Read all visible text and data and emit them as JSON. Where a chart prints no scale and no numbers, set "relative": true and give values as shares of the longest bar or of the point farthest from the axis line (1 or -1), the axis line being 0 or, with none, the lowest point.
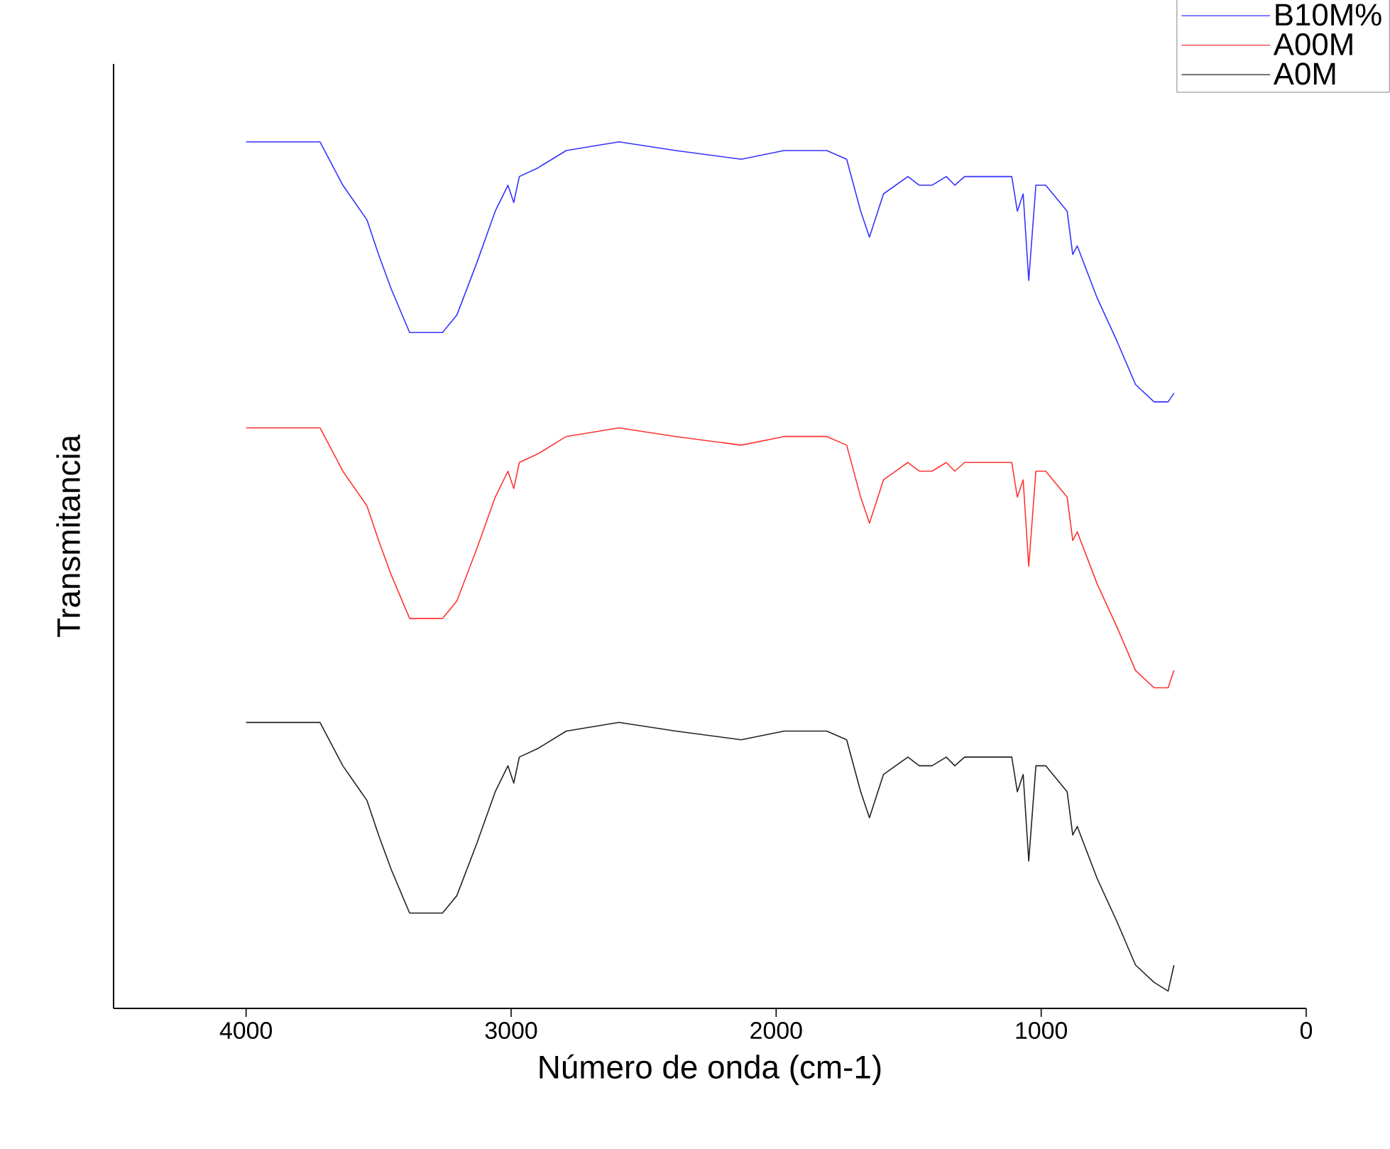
{
  "chart_data": {
    "type": "line",
    "xlabel": "Número de onda (cm-1)",
    "ylabel": "Transmitancia",
    "relative": true,
    "legend": "top right",
    "grid": false,
    "line_style": "solid",
    "xlim": [
      4500,
      0
    ],
    "xticks": [
      4000,
      3000,
      2000,
      1000,
      0
    ],
    "x": [
      4000,
      3800,
      3721,
      3635,
      3544,
      3500,
      3452,
      3383,
      3313,
      3259,
      3205,
      3130,
      3060,
      3012,
      2990,
      2969,
      2899,
      2792,
      2593,
      2379,
      2132,
      1970,
      1809,
      1734,
      1681,
      1648,
      1595,
      1503,
      1460,
      1412,
      1358,
      1326,
      1289,
      1219,
      1111,
      1090,
      1068,
      1047,
      1020,
      983,
      902,
      881,
      864,
      789,
      714,
      644,
      574,
      521,
      499
    ],
    "series": [
      {
        "name": "B10M%",
        "color": "#3333ff",
        "values": [
          1.0,
          1.0,
          1.0,
          0.95,
          0.91,
          0.87,
          0.83,
          0.78,
          0.78,
          0.78,
          0.8,
          0.86,
          0.92,
          0.95,
          0.93,
          0.96,
          0.97,
          0.99,
          1.0,
          0.99,
          0.98,
          0.99,
          0.99,
          0.98,
          0.92,
          0.89,
          0.94,
          0.96,
          0.95,
          0.95,
          0.96,
          0.95,
          0.96,
          0.96,
          0.96,
          0.92,
          0.94,
          0.84,
          0.95,
          0.95,
          0.92,
          0.87,
          0.88,
          0.82,
          0.77,
          0.72,
          0.7,
          0.7,
          0.71
        ]
      },
      {
        "name": "A00M",
        "color": "#ff3333",
        "values": [
          0.67,
          0.67,
          0.67,
          0.62,
          0.58,
          0.54,
          0.5,
          0.45,
          0.45,
          0.45,
          0.47,
          0.53,
          0.59,
          0.62,
          0.6,
          0.63,
          0.64,
          0.66,
          0.67,
          0.66,
          0.65,
          0.66,
          0.66,
          0.65,
          0.59,
          0.56,
          0.61,
          0.63,
          0.62,
          0.62,
          0.63,
          0.62,
          0.63,
          0.63,
          0.63,
          0.59,
          0.61,
          0.51,
          0.62,
          0.62,
          0.59,
          0.54,
          0.55,
          0.49,
          0.44,
          0.39,
          0.37,
          0.37,
          0.39
        ]
      },
      {
        "name": "A0M",
        "color": "#222222",
        "values": [
          0.33,
          0.33,
          0.33,
          0.28,
          0.24,
          0.2,
          0.16,
          0.11,
          0.11,
          0.11,
          0.13,
          0.19,
          0.25,
          0.28,
          0.26,
          0.29,
          0.3,
          0.32,
          0.33,
          0.32,
          0.31,
          0.32,
          0.32,
          0.31,
          0.25,
          0.22,
          0.27,
          0.29,
          0.28,
          0.28,
          0.29,
          0.28,
          0.29,
          0.29,
          0.29,
          0.25,
          0.27,
          0.17,
          0.28,
          0.28,
          0.25,
          0.2,
          0.21,
          0.15,
          0.1,
          0.05,
          0.03,
          0.02,
          0.05
        ]
      }
    ]
  }
}
